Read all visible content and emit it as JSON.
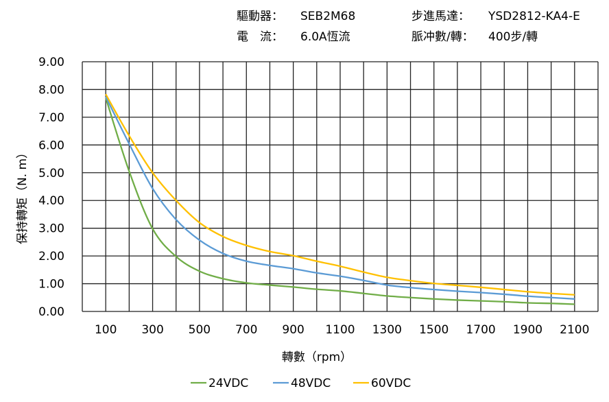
{
  "header": {
    "driver_label": "驅動器：",
    "driver_value": "SEB2M68",
    "motor_label": "步進馬達：",
    "motor_value": "YSD2812-KA4-E",
    "current_label": "電　流：",
    "current_value": "6.0A恆流",
    "pulse_label": "脈冲數/轉：",
    "pulse_value": "400步/轉"
  },
  "chart_data": {
    "type": "line",
    "title": "",
    "xlabel": "轉數（rpm）",
    "ylabel": "保持轉矩（N. m）",
    "xlim": [
      0,
      2200
    ],
    "ylim": [
      0,
      9
    ],
    "grid": true,
    "legend_position": "bottom",
    "x_tick_labels": [
      "100",
      "300",
      "500",
      "700",
      "900",
      "1100",
      "1300",
      "1500",
      "1700",
      "1900",
      "2100"
    ],
    "y_tick_labels": [
      "0.00",
      "1.00",
      "2.00",
      "3.00",
      "4.00",
      "5.00",
      "6.00",
      "7.00",
      "8.00",
      "9.00"
    ],
    "x": [
      100,
      200,
      300,
      400,
      500,
      600,
      700,
      800,
      900,
      1000,
      1100,
      1200,
      1300,
      1400,
      1500,
      1600,
      1700,
      1800,
      1900,
      2000,
      2100
    ],
    "series": [
      {
        "name": "24VDC",
        "color": "#70AD47",
        "values": [
          7.7,
          5.05,
          2.98,
          1.98,
          1.45,
          1.18,
          1.03,
          0.95,
          0.88,
          0.8,
          0.74,
          0.65,
          0.56,
          0.5,
          0.45,
          0.41,
          0.38,
          0.35,
          0.31,
          0.29,
          0.26
        ]
      },
      {
        "name": "48VDC",
        "color": "#5B9BD5",
        "values": [
          7.74,
          6.04,
          4.43,
          3.31,
          2.57,
          2.09,
          1.81,
          1.66,
          1.54,
          1.39,
          1.27,
          1.12,
          0.95,
          0.86,
          0.79,
          0.73,
          0.68,
          0.62,
          0.55,
          0.5,
          0.45
        ]
      },
      {
        "name": "60VDC",
        "color": "#FFC000",
        "values": [
          7.83,
          6.33,
          5.0,
          4.0,
          3.2,
          2.7,
          2.38,
          2.16,
          2.01,
          1.81,
          1.63,
          1.42,
          1.23,
          1.11,
          1.01,
          0.94,
          0.87,
          0.79,
          0.71,
          0.65,
          0.6
        ]
      }
    ]
  }
}
